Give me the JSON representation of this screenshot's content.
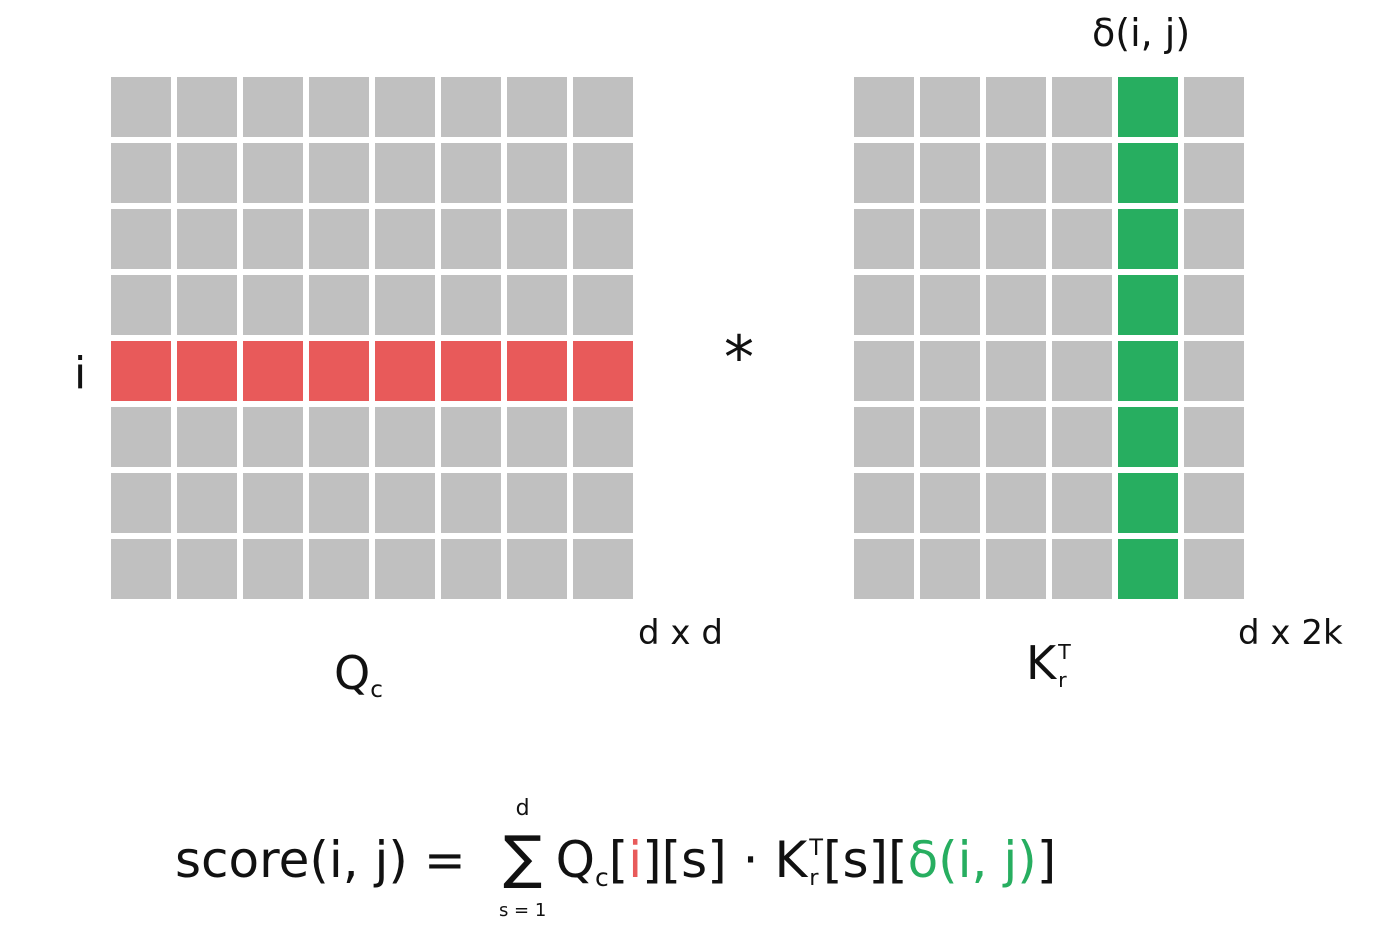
{
  "colors": {
    "cell": "#c0c0c0",
    "row_highlight": "#e85a5a",
    "col_highlight": "#27ae60",
    "text": "#111111"
  },
  "left_matrix": {
    "rows": 8,
    "cols": 8,
    "highlight_row": 5,
    "row_label": "i",
    "dims": "d x d",
    "name_main": "Q",
    "name_sub": "c"
  },
  "operator": "*",
  "right_matrix": {
    "rows": 8,
    "cols": 6,
    "highlight_col": 5,
    "col_label": "δ(i, j)",
    "dims": "d x 2k",
    "name_main": "K",
    "name_sup": "T",
    "name_sub": "r"
  },
  "formula": {
    "lhs": "score(i, j) =",
    "sum_symbol": "∑",
    "sum_upper": "d",
    "sum_lower": "s = 1",
    "q_main": "Q",
    "q_sub": "c",
    "bracket_open": "[",
    "i_index": "i",
    "bracket_mid": "][s] · ",
    "k_main": "K",
    "k_sup": "T",
    "k_sub": "r",
    "bracket_s": "[s][",
    "delta_index": "δ(i, j)",
    "bracket_close": "]"
  }
}
